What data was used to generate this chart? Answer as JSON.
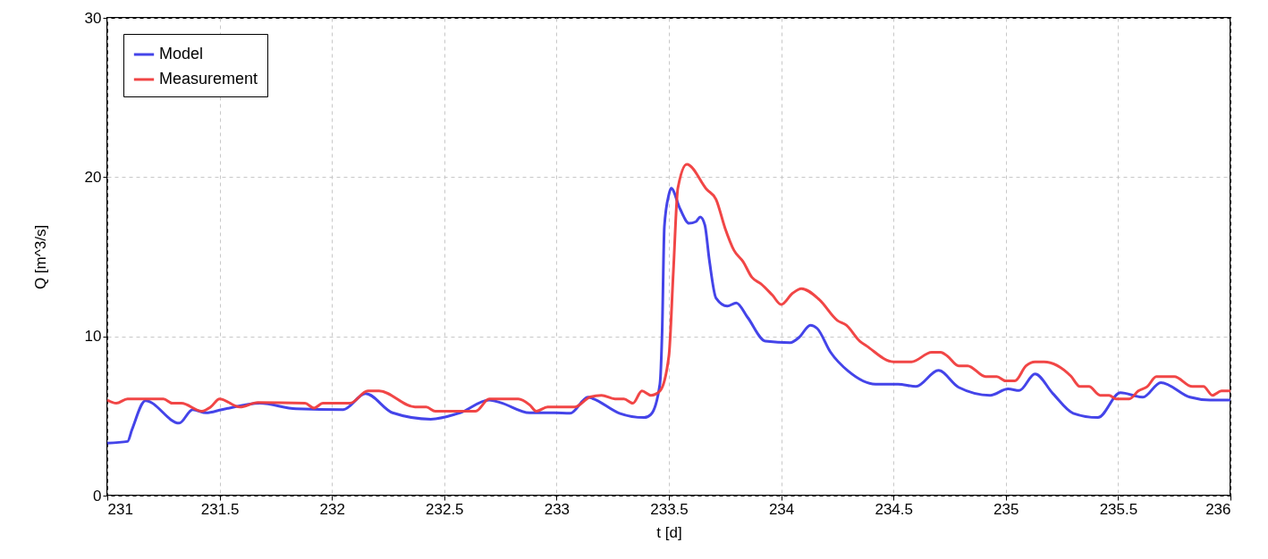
{
  "chart_data": {
    "type": "line",
    "xlabel": "t [d]",
    "ylabel": "Q [m^3/s]",
    "xlim": [
      231,
      236
    ],
    "ylim": [
      0,
      30
    ],
    "xticks": [
      231,
      231.5,
      232,
      232.5,
      233,
      233.5,
      234,
      234.5,
      235,
      235.5,
      236
    ],
    "yticks": [
      0,
      10,
      20,
      30
    ],
    "grid": true,
    "legend": "top left",
    "line_style": "solid",
    "marker": "none",
    "series": [
      {
        "name": "Model",
        "color": "#3a3ae8",
        "x": [
          231.0,
          231.09,
          231.11,
          231.17,
          231.32,
          231.38,
          231.44,
          231.51,
          231.68,
          231.84,
          232.05,
          232.15,
          232.27,
          232.44,
          232.57,
          232.7,
          232.75,
          232.88,
          232.99,
          233.06,
          233.14,
          233.16,
          233.28,
          233.39,
          233.42,
          233.46,
          233.47,
          233.48,
          233.5,
          233.51,
          233.55,
          233.59,
          233.62,
          233.64,
          233.66,
          233.68,
          233.71,
          233.76,
          233.8,
          233.85,
          233.93,
          234.04,
          234.08,
          234.13,
          234.16,
          234.22,
          234.3,
          234.42,
          234.52,
          234.6,
          234.7,
          234.79,
          234.93,
          235.01,
          235.06,
          235.13,
          235.21,
          235.3,
          235.41,
          235.51,
          235.61,
          235.69,
          235.82,
          235.91,
          236.0
        ],
        "values": [
          3.3,
          3.4,
          4.15,
          5.96,
          4.55,
          5.4,
          5.2,
          5.4,
          5.8,
          5.45,
          5.4,
          6.4,
          5.2,
          4.8,
          5.2,
          6.0,
          5.84,
          5.2,
          5.2,
          5.17,
          6.18,
          6.1,
          5.17,
          4.9,
          5.1,
          7.0,
          10.3,
          16.9,
          18.9,
          19.3,
          18.0,
          17.1,
          17.2,
          17.5,
          17.0,
          14.8,
          12.4,
          11.9,
          12.1,
          11.2,
          9.7,
          9.6,
          9.94,
          10.7,
          10.5,
          9.0,
          7.8,
          7.0,
          7.0,
          6.85,
          7.86,
          6.8,
          6.3,
          6.7,
          6.6,
          7.64,
          6.4,
          5.17,
          4.9,
          6.46,
          6.18,
          7.1,
          6.18,
          6.0,
          6.0
        ]
      },
      {
        "name": "Measurement",
        "color": "#f03c3c",
        "x": [
          231.0,
          231.04,
          231.09,
          231.25,
          231.29,
          231.33,
          231.42,
          231.46,
          231.5,
          231.59,
          231.67,
          231.88,
          231.92,
          231.96,
          232.08,
          232.16,
          232.21,
          232.37,
          232.42,
          232.46,
          232.64,
          232.7,
          232.83,
          232.88,
          232.91,
          232.96,
          233.08,
          233.15,
          233.2,
          233.26,
          233.3,
          233.34,
          233.38,
          233.42,
          233.46,
          233.5,
          233.52,
          233.54,
          233.58,
          233.67,
          233.71,
          233.75,
          233.79,
          233.83,
          233.87,
          233.91,
          233.96,
          234.0,
          234.05,
          234.09,
          234.17,
          234.25,
          234.29,
          234.35,
          234.38,
          234.5,
          234.58,
          234.67,
          234.71,
          234.74,
          234.79,
          234.83,
          234.91,
          234.96,
          235.0,
          235.04,
          235.09,
          235.13,
          235.17,
          235.29,
          235.33,
          235.37,
          235.42,
          235.46,
          235.49,
          235.55,
          235.59,
          235.63,
          235.67,
          235.75,
          235.83,
          235.88,
          235.92,
          235.96,
          236.0
        ],
        "values": [
          6.0,
          5.8,
          6.07,
          6.07,
          5.8,
          5.8,
          5.3,
          5.56,
          6.07,
          5.56,
          5.84,
          5.8,
          5.5,
          5.8,
          5.8,
          6.57,
          6.57,
          5.56,
          5.56,
          5.3,
          5.3,
          6.07,
          6.07,
          5.7,
          5.3,
          5.56,
          5.56,
          6.2,
          6.3,
          6.07,
          6.07,
          5.8,
          6.57,
          6.3,
          6.57,
          8.76,
          14.1,
          19.3,
          20.8,
          19.2,
          18.6,
          16.8,
          15.4,
          14.7,
          13.7,
          13.3,
          12.6,
          12.0,
          12.7,
          13.0,
          12.3,
          11.0,
          10.7,
          9.7,
          9.4,
          8.4,
          8.4,
          9.0,
          9.0,
          8.76,
          8.15,
          8.15,
          7.47,
          7.47,
          7.2,
          7.2,
          8.15,
          8.4,
          8.4,
          7.5,
          6.85,
          6.85,
          6.3,
          6.3,
          6.07,
          6.07,
          6.57,
          6.85,
          7.47,
          7.47,
          6.85,
          6.85,
          6.3,
          6.57,
          6.57
        ]
      }
    ]
  }
}
